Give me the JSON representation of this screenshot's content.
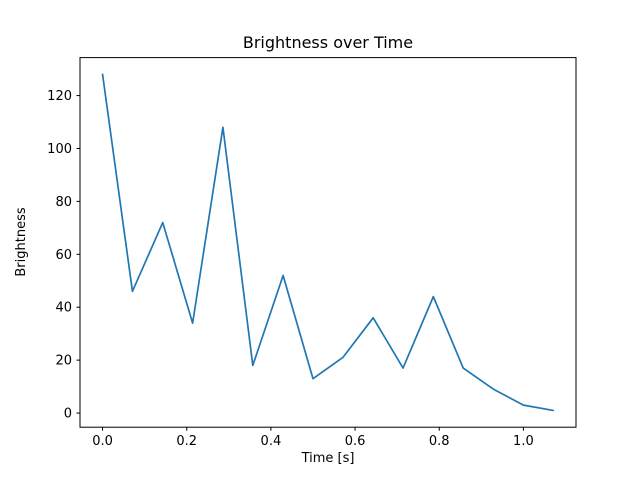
{
  "chart_data": {
    "type": "line",
    "title": "Brightness over Time",
    "xlabel": "Time [s]",
    "ylabel": "Brightness",
    "x": [
      0.0,
      0.071,
      0.143,
      0.214,
      0.286,
      0.357,
      0.429,
      0.5,
      0.571,
      0.643,
      0.714,
      0.786,
      0.857,
      0.929,
      1.0,
      1.071
    ],
    "values": [
      128,
      46,
      72,
      34,
      108,
      18,
      52,
      13,
      21,
      36,
      17,
      44,
      17,
      9,
      3,
      1
    ],
    "xlim": [
      -0.0536,
      1.125
    ],
    "ylim": [
      -5.35,
      134.35
    ],
    "xticks": [
      0.0,
      0.2,
      0.4,
      0.6,
      0.8,
      1.0
    ],
    "xtick_labels": [
      "0.0",
      "0.2",
      "0.4",
      "0.6",
      "0.8",
      "1.0"
    ],
    "yticks": [
      0,
      20,
      40,
      60,
      80,
      100,
      120
    ],
    "ytick_labels": [
      "0",
      "20",
      "40",
      "60",
      "80",
      "100",
      "120"
    ],
    "line_color": "#1f77b4",
    "spine_color": "#000000",
    "grid": false,
    "legend_position": "none"
  }
}
